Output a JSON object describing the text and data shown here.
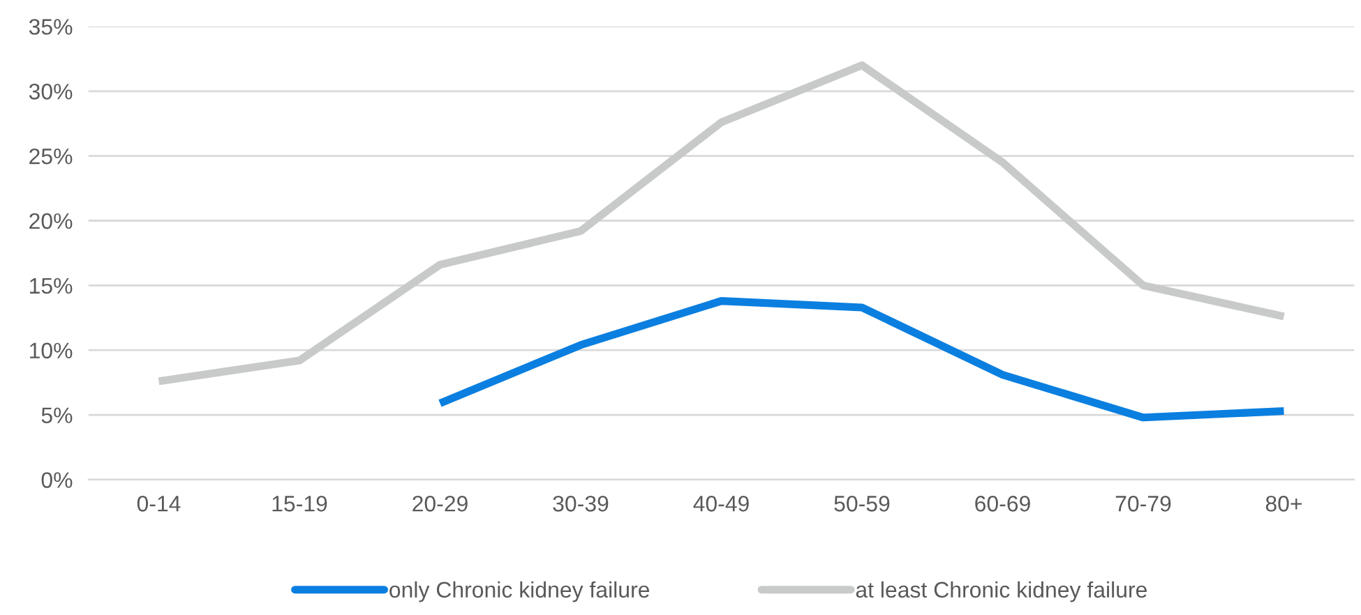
{
  "chart_data": {
    "type": "line",
    "categories": [
      "0-14",
      "15-19",
      "20-29",
      "30-39",
      "40-49",
      "50-59",
      "60-69",
      "70-79",
      "80+"
    ],
    "series": [
      {
        "name": "only Chronic kidney failure",
        "color": "#0a7fe0",
        "values": [
          null,
          null,
          5.9,
          10.4,
          13.8,
          13.3,
          8.1,
          4.8,
          5.3
        ]
      },
      {
        "name": "at least Chronic kidney failure",
        "color": "#c8c9c9",
        "values": [
          7.6,
          9.2,
          16.6,
          19.2,
          27.6,
          32.0,
          24.5,
          15.0,
          12.6
        ]
      }
    ],
    "ylim": [
      0,
      35
    ],
    "yticks": [
      {
        "value": 0,
        "label": "0%"
      },
      {
        "value": 5,
        "label": "5%"
      },
      {
        "value": 10,
        "label": "10%"
      },
      {
        "value": 15,
        "label": "15%"
      },
      {
        "value": 20,
        "label": "20%"
      },
      {
        "value": 25,
        "label": "25%"
      },
      {
        "value": 30,
        "label": "30%"
      },
      {
        "value": 35,
        "label": "35%"
      }
    ],
    "grid": "y",
    "legend": "bottom",
    "marker": "none",
    "line_style": "solid"
  }
}
